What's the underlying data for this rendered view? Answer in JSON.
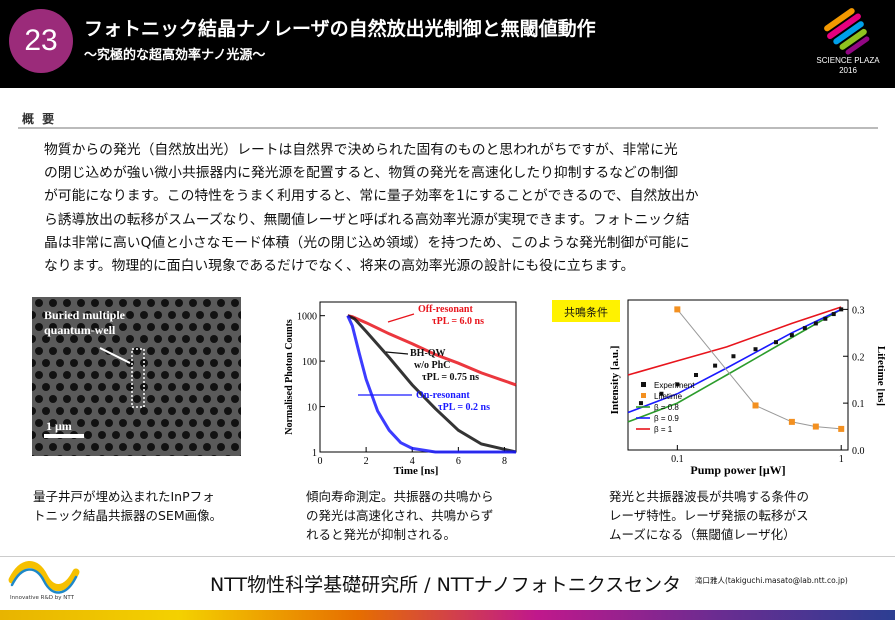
{
  "header": {
    "number": "23",
    "title": "フォトニック結晶ナノレーザの自然放出光制御と無閾値動作",
    "subtitle": "〜究極的な超高効率ナノ光源〜",
    "logo_line1": "SCIENCE PLAZA",
    "logo_line2": "2016"
  },
  "section_label": "概 要",
  "summary": [
    "物質からの発光（自然放出光）レートは自然界で決められた固有のものと思われがちですが、非常に光",
    "の閉じ込めが強い微小共振器内に発光源を配置すると、物質の発光を高速化したり抑制するなどの制御",
    "が可能になります。この特性をうまく利用すると、常に量子効率を1にすることができるので、自然放出か",
    "ら誘導放出の転移がスムーズなり、無閾値レーザと呼ばれる高効率光源が実現できます。フォトニック結",
    "晶は非常に高いQ値と小さなモード体積（光の閉じ込め領域）を持つため、このような発光制御が可能に",
    "なります。物理的に面白い現象であるだけでなく、将来の高効率光源の設計にも役に立ちます。"
  ],
  "sem": {
    "label_line1": "Buried multiple",
    "label_line2": "quantum-well",
    "scale": "1 μm"
  },
  "chart_data": [
    {
      "type": "line",
      "xlabel": "Time [ns]",
      "ylabel": "Normalised Photon Counts",
      "x_ticks": [
        "0",
        "2",
        "4",
        "6",
        "8"
      ],
      "y_ticks": [
        "1",
        "10",
        "100",
        "1000"
      ],
      "xlim": [
        0,
        8.5
      ],
      "ylim": [
        1,
        2000
      ],
      "y_scale": "log",
      "series": [
        {
          "name": "Off-resonant",
          "color": "#e8141c",
          "x": [
            1.2,
            1.4,
            2,
            3,
            4,
            5,
            6,
            7,
            8.5
          ],
          "y": [
            1000,
            950,
            700,
            400,
            240,
            140,
            90,
            55,
            30
          ]
        },
        {
          "name": "BH-QW w/o PhC",
          "color": "#111111",
          "x": [
            1.2,
            1.5,
            2,
            3,
            4,
            5,
            6,
            7,
            8.5
          ],
          "y": [
            1000,
            850,
            450,
            120,
            30,
            9,
            3,
            1.5,
            1
          ]
        },
        {
          "name": "On-resonant",
          "color": "#1a1aff",
          "x": [
            1.2,
            1.4,
            1.7,
            2,
            2.5,
            3,
            3.5,
            4,
            5,
            6,
            8.5
          ],
          "y": [
            1000,
            600,
            150,
            40,
            8,
            3,
            1.6,
            1.2,
            1,
            1,
            1
          ]
        }
      ],
      "annotations": [
        {
          "text": "Off-resonant",
          "color": "#e8141c"
        },
        {
          "text": "τPL = 6.0 ns",
          "color": "#e8141c"
        },
        {
          "text": "BH-QW",
          "color": "#111111"
        },
        {
          "text": "w/o PhC",
          "color": "#111111"
        },
        {
          "text": "τPL = 0.75 ns",
          "color": "#111111"
        },
        {
          "text": "On-resonant",
          "color": "#1a1aff"
        },
        {
          "text": "τPL = 0.2 ns",
          "color": "#1a1aff"
        }
      ]
    },
    {
      "type": "line",
      "badge": "共鳴条件",
      "xlabel": "Pump power [μW]",
      "ylabel": "Intensity [a.u.]",
      "y2label": "Lifetime [ns]",
      "x_scale": "log",
      "xlim": [
        0.05,
        1.1
      ],
      "x_ticks": [
        "0.1",
        "1"
      ],
      "y2_ticks": [
        "0.0",
        "0.1",
        "0.2",
        "0.3"
      ],
      "y2lim": [
        0,
        0.32
      ],
      "legend": [
        "Experiment",
        "Lifetime",
        "β = 0.8",
        "β = 0.9",
        "β = 1"
      ],
      "experiment": {
        "x": [
          0.06,
          0.08,
          0.1,
          0.13,
          0.17,
          0.22,
          0.3,
          0.4,
          0.5,
          0.6,
          0.7,
          0.8,
          0.9,
          1.0
        ],
        "y": [
          0.1,
          0.12,
          0.14,
          0.16,
          0.18,
          0.2,
          0.215,
          0.23,
          0.245,
          0.26,
          0.27,
          0.28,
          0.29,
          0.3
        ]
      },
      "lifetime": {
        "x": [
          0.1,
          0.3,
          0.5,
          0.7,
          1.0
        ],
        "y": [
          0.3,
          0.095,
          0.06,
          0.05,
          0.045
        ]
      },
      "beta_lines": [
        {
          "name": "β = 0.8",
          "color": "#2c9c2c",
          "x": [
            0.05,
            0.1,
            0.2,
            0.5,
            1.0
          ],
          "y": [
            0.06,
            0.1,
            0.16,
            0.24,
            0.3
          ]
        },
        {
          "name": "β = 0.9",
          "color": "#1a1aff",
          "x": [
            0.05,
            0.1,
            0.2,
            0.5,
            1.0
          ],
          "y": [
            0.08,
            0.12,
            0.175,
            0.25,
            0.3
          ]
        },
        {
          "name": "β = 1",
          "color": "#e8141c",
          "x": [
            0.05,
            0.1,
            0.2,
            0.5,
            1.0
          ],
          "y": [
            0.16,
            0.19,
            0.22,
            0.27,
            0.305
          ]
        }
      ]
    }
  ],
  "captions": {
    "cap1": [
      "量子井戸が埋め込まれたInPフォ",
      "トニック結晶共振器のSEM画像。"
    ],
    "cap2": [
      "傾向寿命測定。共振器の共鳴から",
      "の発光は高速化され、共鳴からず",
      "れると発光が抑制される。"
    ],
    "cap3": [
      "発光と共振器波長が共鳴する条件の",
      "レーザ特性。レーザ発振の転移がス",
      "ムーズになる（無閾値レーザ化）"
    ]
  },
  "footer": {
    "title": "NTT物性科学基礎研究所 / NTTナノフォトニクスセンタ",
    "contact": "滝口雅人(takiguchi.masato@lab.ntt.co.jp)",
    "logo_text": "Innovative R&D by NTT"
  }
}
